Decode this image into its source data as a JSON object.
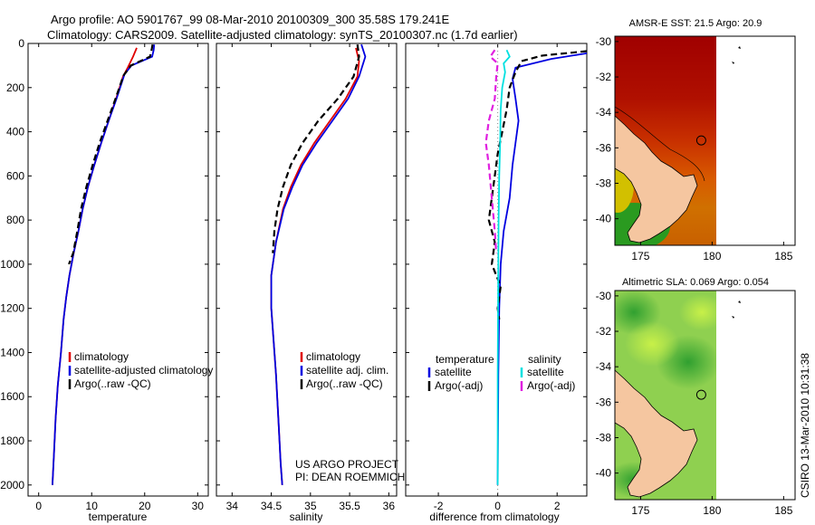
{
  "header": {
    "line1": "Argo profile: AO 5901767_99 08-Mar-2010 20100309_300 35.58S 179.241E",
    "line2": "Climatology: CARS2009. Satellite-adjusted climatology: synTS_20100307.nc (1.7d earlier)"
  },
  "footer": {
    "project": "US ARGO PROJECT",
    "pi": "PI: DEAN ROEMMICH",
    "stamp": "CSIRO 13-Mar-2010 10:31:38"
  },
  "colors": {
    "climatology": "#e00000",
    "satellite": "#0000e0",
    "argo": "#000000",
    "sal_satellite": "#00e0e0",
    "sal_argo": "#e020e0",
    "land": "#f5c6a0"
  },
  "chart_data": [
    {
      "type": "line",
      "xlabel": "temperature",
      "ylabel": "",
      "xlim": [
        -2,
        32
      ],
      "ylim": [
        2050,
        0
      ],
      "xticks": [
        0,
        10,
        20,
        30
      ],
      "yticks": [
        0,
        200,
        400,
        600,
        800,
        1000,
        1200,
        1400,
        1600,
        1800,
        2000
      ],
      "legend": {
        "placement": "lower-middle",
        "entries": [
          "climatology",
          "satellite-adjusted climatology",
          "Argo(..raw -QC)"
        ]
      },
      "series": [
        {
          "name": "climatology",
          "color": "climatology",
          "dash": false,
          "points": [
            [
              18.5,
              20
            ],
            [
              17.8,
              60
            ],
            [
              16.8,
              110
            ],
            [
              15.9,
              150
            ],
            [
              14.6,
              250
            ],
            [
              13.2,
              350
            ],
            [
              11.8,
              450
            ],
            [
              10.5,
              550
            ],
            [
              9.3,
              650
            ],
            [
              8.3,
              750
            ],
            [
              7.5,
              850
            ],
            [
              6.6,
              950
            ],
            [
              5.8,
              1050
            ],
            [
              5.2,
              1150
            ],
            [
              4.7,
              1250
            ],
            [
              4.2,
              1400
            ],
            [
              3.6,
              1550
            ],
            [
              3.2,
              1700
            ],
            [
              2.9,
              1850
            ],
            [
              2.6,
              2000
            ]
          ]
        },
        {
          "name": "satellite-adjusted climatology",
          "color": "satellite",
          "dash": false,
          "points": [
            [
              21.8,
              5
            ],
            [
              21.7,
              30
            ],
            [
              21.4,
              60
            ],
            [
              17.5,
              100
            ],
            [
              16.2,
              140
            ],
            [
              14.7,
              250
            ],
            [
              13.2,
              350
            ],
            [
              11.8,
              450
            ],
            [
              10.5,
              550
            ],
            [
              9.3,
              650
            ],
            [
              8.3,
              750
            ],
            [
              7.5,
              850
            ],
            [
              6.6,
              950
            ],
            [
              5.8,
              1050
            ],
            [
              5.2,
              1150
            ],
            [
              4.7,
              1250
            ],
            [
              4.2,
              1400
            ],
            [
              3.6,
              1550
            ],
            [
              3.2,
              1700
            ],
            [
              2.9,
              1850
            ],
            [
              2.6,
              2000
            ]
          ]
        },
        {
          "name": "Argo(..raw -QC)",
          "color": "argo",
          "dash": true,
          "points": [
            [
              21.5,
              5
            ],
            [
              21.3,
              30
            ],
            [
              21.0,
              60
            ],
            [
              17.4,
              100
            ],
            [
              16.0,
              145
            ],
            [
              14.5,
              250
            ],
            [
              13.0,
              350
            ],
            [
              11.5,
              450
            ],
            [
              10.2,
              550
            ],
            [
              9.0,
              650
            ],
            [
              8.0,
              750
            ],
            [
              7.3,
              850
            ],
            [
              6.5,
              950
            ],
            [
              5.7,
              1000
            ]
          ]
        }
      ]
    },
    {
      "type": "line",
      "xlabel": "salinity",
      "ylabel": "",
      "xlim": [
        33.8,
        36.1
      ],
      "ylim": [
        2050,
        0
      ],
      "xticks": [
        34,
        34.5,
        35,
        35.5,
        36
      ],
      "yticks": [
        0,
        200,
        400,
        600,
        800,
        1000,
        1200,
        1400,
        1600,
        1800,
        2000
      ],
      "legend": {
        "placement": "lower-middle",
        "entries": [
          "climatology",
          "satellite adj. clim.",
          "Argo(..raw -QC)"
        ]
      },
      "series": [
        {
          "name": "climatology",
          "color": "climatology",
          "dash": false,
          "points": [
            [
              35.58,
              20
            ],
            [
              35.62,
              80
            ],
            [
              35.6,
              150
            ],
            [
              35.45,
              250
            ],
            [
              35.25,
              350
            ],
            [
              35.05,
              450
            ],
            [
              34.88,
              550
            ],
            [
              34.75,
              650
            ],
            [
              34.65,
              750
            ],
            [
              34.56,
              900
            ],
            [
              34.5,
              1050
            ],
            [
              34.5,
              1200
            ],
            [
              34.53,
              1350
            ],
            [
              34.56,
              1500
            ],
            [
              34.59,
              1700
            ],
            [
              34.62,
              1900
            ],
            [
              34.64,
              2000
            ]
          ]
        },
        {
          "name": "satellite adj. clim.",
          "color": "satellite",
          "dash": false,
          "points": [
            [
              35.65,
              5
            ],
            [
              35.7,
              60
            ],
            [
              35.62,
              150
            ],
            [
              35.48,
              250
            ],
            [
              35.28,
              350
            ],
            [
              35.08,
              450
            ],
            [
              34.9,
              550
            ],
            [
              34.77,
              650
            ],
            [
              34.66,
              750
            ],
            [
              34.56,
              900
            ],
            [
              34.5,
              1050
            ],
            [
              34.5,
              1200
            ],
            [
              34.53,
              1350
            ],
            [
              34.56,
              1500
            ],
            [
              34.59,
              1700
            ],
            [
              34.62,
              1900
            ],
            [
              34.64,
              2000
            ]
          ]
        },
        {
          "name": "Argo(..raw -QC)",
          "color": "argo",
          "dash": true,
          "points": [
            [
              35.6,
              5
            ],
            [
              35.62,
              60
            ],
            [
              35.55,
              150
            ],
            [
              35.35,
              250
            ],
            [
              35.1,
              350
            ],
            [
              34.9,
              450
            ],
            [
              34.75,
              550
            ],
            [
              34.65,
              650
            ],
            [
              34.58,
              750
            ],
            [
              34.54,
              850
            ],
            [
              34.52,
              950
            ]
          ]
        }
      ]
    },
    {
      "type": "line",
      "xlabel": "difference from climatology",
      "ylabel": "",
      "xlim": [
        -3.1,
        3.0
      ],
      "ylim": [
        2050,
        0
      ],
      "xticks": [
        -2,
        0,
        2
      ],
      "yticks": [
        0,
        200,
        400,
        600,
        800,
        1000,
        1200,
        1400,
        1600,
        1800,
        2000
      ],
      "legend": {
        "placement": "lower-middle",
        "headers": [
          "temperature",
          "salinity"
        ],
        "entries": [
          "satellite",
          "Argo(-adj)",
          "satellite",
          "Argo(-adj)"
        ]
      },
      "series": [
        {
          "name": "satellite",
          "group": "temperature",
          "color": "satellite",
          "dash": false,
          "points": [
            [
              3.2,
              40
            ],
            [
              1.8,
              70
            ],
            [
              0.6,
              110
            ],
            [
              0.5,
              160
            ],
            [
              0.6,
              250
            ],
            [
              0.7,
              350
            ],
            [
              0.6,
              450
            ],
            [
              0.5,
              550
            ],
            [
              0.4,
              700
            ],
            [
              0.2,
              850
            ],
            [
              0.1,
              1000
            ],
            [
              0.05,
              1200
            ],
            [
              0.02,
              1500
            ],
            [
              0.0,
              2000
            ]
          ]
        },
        {
          "name": "Argo(-adj)",
          "group": "temperature",
          "color": "argo",
          "dash": true,
          "points": [
            [
              3.0,
              35
            ],
            [
              1.5,
              55
            ],
            [
              0.8,
              80
            ],
            [
              0.6,
              130
            ],
            [
              0.4,
              200
            ],
            [
              0.3,
              300
            ],
            [
              0.15,
              400
            ],
            [
              0.0,
              500
            ],
            [
              -0.1,
              600
            ],
            [
              -0.2,
              700
            ],
            [
              -0.3,
              800
            ],
            [
              -0.1,
              900
            ],
            [
              -0.2,
              1000
            ],
            [
              0.1,
              1100
            ],
            [
              0.0,
              1200
            ],
            [
              0.05,
              1250
            ]
          ]
        },
        {
          "name": "satellite",
          "group": "salinity",
          "color": "sal_satellite",
          "dash": false,
          "points": [
            [
              0.3,
              30
            ],
            [
              0.4,
              60
            ],
            [
              0.2,
              90
            ],
            [
              0.25,
              130
            ],
            [
              0.15,
              200
            ],
            [
              0.1,
              300
            ],
            [
              0.08,
              450
            ],
            [
              0.05,
              600
            ],
            [
              0.03,
              800
            ],
            [
              0.02,
              1000
            ],
            [
              0.01,
              1200
            ],
            [
              0.0,
              1500
            ],
            [
              0.0,
              2000
            ]
          ]
        },
        {
          "name": "Argo(-adj)",
          "group": "salinity",
          "color": "sal_argo",
          "dash": true,
          "points": [
            [
              -0.1,
              30
            ],
            [
              -0.25,
              60
            ],
            [
              0.0,
              90
            ],
            [
              -0.05,
              150
            ],
            [
              -0.1,
              250
            ],
            [
              -0.3,
              350
            ],
            [
              -0.4,
              450
            ],
            [
              -0.3,
              550
            ],
            [
              -0.2,
              700
            ],
            [
              -0.1,
              850
            ],
            [
              -0.05,
              950
            ]
          ]
        }
      ]
    },
    {
      "type": "heatmap",
      "title": "AMSR-E SST: 21.5 Argo: 20.9",
      "xlim": [
        173.2,
        185.8
      ],
      "ylim": [
        -41.5,
        -29.7
      ],
      "xticks": [
        175,
        180,
        185
      ],
      "yticks": [
        -30,
        -32,
        -34,
        -36,
        -38,
        -40
      ],
      "marker": {
        "lon": 179.24,
        "lat": -35.58
      }
    },
    {
      "type": "heatmap",
      "title": "Altimetric SLA: 0.069 Argo: 0.054",
      "xlim": [
        173.2,
        185.8
      ],
      "ylim": [
        -41.5,
        -29.7
      ],
      "xticks": [
        175,
        180,
        185
      ],
      "yticks": [
        -30,
        -32,
        -34,
        -36,
        -38,
        -40
      ],
      "marker": {
        "lon": 179.24,
        "lat": -35.58
      }
    }
  ]
}
